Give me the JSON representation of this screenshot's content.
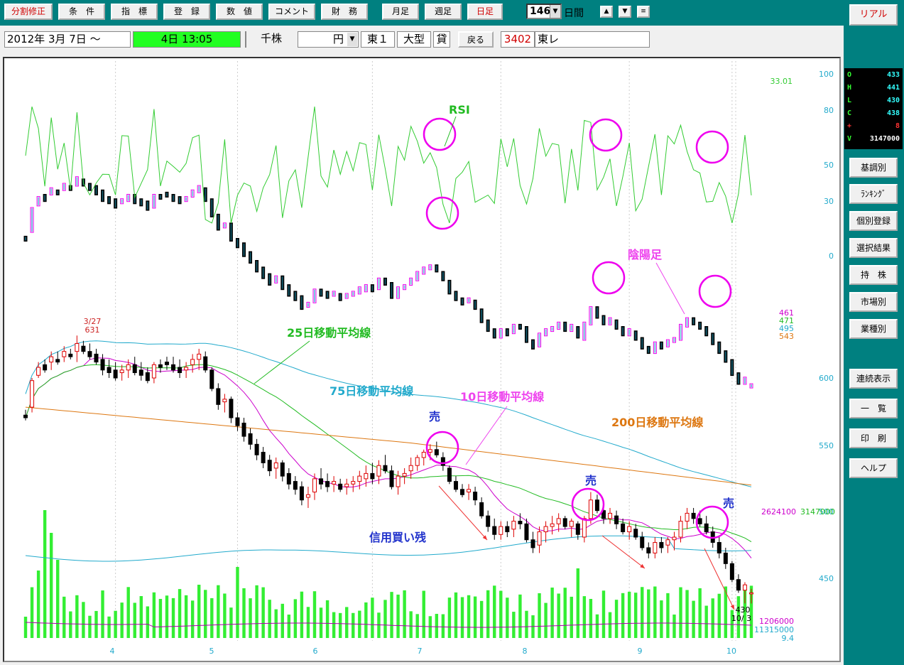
{
  "toolbar": {
    "buttons": [
      "分割修正",
      "条　件",
      "指　標",
      "登　録",
      "数　値",
      "コメント",
      "財　務",
      "月足",
      "週足",
      "日足"
    ],
    "period_value": "146",
    "period_unit": "日間"
  },
  "sidebar": {
    "realtime_button": "リアル",
    "buttons": [
      "基調別",
      "ﾗﾝｷﾝｸﾞ",
      "個別登録",
      "選択結果",
      "持　株",
      "市場別",
      "業種別",
      "連続表示",
      "一　覧",
      "印　刷",
      "ヘルプ"
    ],
    "ohlc": [
      {
        "key": "O",
        "value": "433"
      },
      {
        "key": "H",
        "value": "441"
      },
      {
        "key": "L",
        "value": "430"
      },
      {
        "key": "C",
        "value": "438"
      },
      {
        "key": "+",
        "value": "8"
      },
      {
        "key": "V",
        "value": "3147000"
      }
    ]
  },
  "infobar": {
    "start_date": "2012年 3月 7日 ～",
    "current_time": "4日 13:05",
    "volume_unit": "千株",
    "price_unit": "円",
    "market": "東１",
    "size": "大型",
    "lending": "貸",
    "back_button": "戻る",
    "code": "3402",
    "name": "東レ"
  },
  "colors": {
    "toolbar_bg": "#008080",
    "rsi": "#33cc33",
    "ma10": "#cc00cc",
    "ma25": "#22bb22",
    "ma75": "#22aacc",
    "ma200": "#dd7711",
    "volume": "#33ee33",
    "annotation_circle": "#ee00ee",
    "up_candle": "#dd0000",
    "down_candle": "#000000"
  },
  "chart_data": {
    "type": "candlestick",
    "x_ticks": [
      "4",
      "5",
      "6",
      "7",
      "8",
      "9",
      "10"
    ],
    "price_axis": {
      "ticks": [
        600,
        550,
        500,
        450
      ],
      "ylim": [
        440,
        640
      ]
    },
    "rsi_axis": {
      "ticks": [
        100,
        80,
        50,
        30,
        0
      ],
      "ylim": [
        0,
        100
      ],
      "current": "33.01"
    },
    "ma_values": [
      {
        "name": "10",
        "value": "461"
      },
      {
        "name": "25",
        "value": "471"
      },
      {
        "name": "75",
        "value": "495"
      },
      {
        "name": "200",
        "value": "543"
      }
    ],
    "margin_balance": "2624100",
    "latest_volume": "3147000",
    "volume_labels": [
      "1206000",
      "11315000"
    ],
    "bottom_value": "9.4",
    "peak_label": {
      "date": "3/27",
      "price": "631"
    },
    "last_label": {
      "date": "10/ 3",
      "price": "430"
    },
    "annotations": {
      "rsi": "RSI",
      "candles": "陰陽足",
      "ma25": "25日移動平均線",
      "ma75": "75日移動平均線",
      "ma10": "10日移動平均線",
      "ma200": "200日移動平均線",
      "margin": "信用買い残",
      "sell": "売"
    },
    "candles_daily_close_approx": [
      [
        572,
        568,
        576,
        570
      ],
      [
        578,
        574,
        600,
        598
      ],
      [
        602,
        600,
        612,
        608
      ],
      [
        610,
        604,
        614,
        606
      ],
      [
        612,
        606,
        620,
        616
      ],
      [
        614,
        610,
        620,
        612
      ],
      [
        616,
        612,
        624,
        620
      ],
      [
        618,
        614,
        622,
        616
      ],
      [
        620,
        612,
        632,
        626
      ],
      [
        624,
        618,
        628,
        620
      ],
      [
        620,
        614,
        626,
        616
      ],
      [
        618,
        610,
        622,
        612
      ],
      [
        614,
        602,
        618,
        606
      ],
      [
        608,
        600,
        614,
        604
      ],
      [
        606,
        598,
        612,
        600
      ],
      [
        604,
        598,
        610,
        606
      ],
      [
        606,
        600,
        614,
        610
      ],
      [
        610,
        602,
        616,
        604
      ],
      [
        606,
        598,
        612,
        602
      ],
      [
        604,
        596,
        608,
        598
      ],
      [
        600,
        596,
        612,
        610
      ],
      [
        610,
        604,
        614,
        608
      ],
      [
        612,
        606,
        616,
        610
      ],
      [
        610,
        604,
        616,
        606
      ],
      [
        608,
        600,
        614,
        604
      ],
      [
        606,
        600,
        612,
        608
      ],
      [
        610,
        604,
        618,
        614
      ],
      [
        614,
        606,
        622,
        618
      ],
      [
        616,
        604,
        620,
        606
      ],
      [
        606,
        590,
        608,
        592
      ],
      [
        592,
        576,
        596,
        580
      ],
      [
        582,
        574,
        588,
        584
      ],
      [
        584,
        566,
        586,
        570
      ],
      [
        570,
        560,
        574,
        564
      ],
      [
        566,
        552,
        570,
        556
      ],
      [
        558,
        546,
        562,
        550
      ],
      [
        550,
        538,
        554,
        542
      ],
      [
        544,
        532,
        548,
        536
      ],
      [
        538,
        526,
        542,
        530
      ],
      [
        532,
        524,
        540,
        536
      ],
      [
        536,
        522,
        538,
        526
      ],
      [
        528,
        516,
        532,
        520
      ],
      [
        522,
        512,
        526,
        516
      ],
      [
        518,
        504,
        522,
        508
      ],
      [
        510,
        502,
        518,
        512
      ],
      [
        514,
        508,
        528,
        524
      ],
      [
        524,
        516,
        532,
        520
      ],
      [
        522,
        514,
        528,
        518
      ],
      [
        520,
        514,
        526,
        522
      ],
      [
        520,
        514,
        524,
        516
      ],
      [
        518,
        512,
        524,
        520
      ],
      [
        520,
        514,
        526,
        522
      ],
      [
        522,
        516,
        530,
        526
      ],
      [
        524,
        518,
        534,
        528
      ],
      [
        528,
        520,
        536,
        524
      ],
      [
        526,
        520,
        538,
        534
      ],
      [
        534,
        528,
        542,
        530
      ],
      [
        530,
        516,
        534,
        518
      ],
      [
        518,
        512,
        530,
        526
      ],
      [
        526,
        520,
        532,
        528
      ],
      [
        530,
        524,
        540,
        534
      ],
      [
        534,
        530,
        542,
        540
      ],
      [
        540,
        534,
        546,
        544
      ],
      [
        544,
        538,
        550,
        546
      ],
      [
        546,
        540,
        552,
        542
      ],
      [
        540,
        530,
        544,
        534
      ],
      [
        532,
        520,
        534,
        522
      ],
      [
        522,
        514,
        526,
        516
      ],
      [
        516,
        510,
        520,
        512
      ],
      [
        514,
        508,
        520,
        516
      ],
      [
        514,
        504,
        518,
        508
      ],
      [
        506,
        494,
        510,
        496
      ],
      [
        496,
        484,
        500,
        488
      ],
      [
        488,
        478,
        494,
        482
      ],
      [
        482,
        478,
        492,
        488
      ],
      [
        488,
        480,
        492,
        484
      ],
      [
        486,
        480,
        496,
        492
      ],
      [
        492,
        486,
        498,
        490
      ],
      [
        490,
        476,
        494,
        478
      ],
      [
        478,
        468,
        484,
        472
      ],
      [
        474,
        468,
        488,
        484
      ],
      [
        484,
        476,
        492,
        488
      ],
      [
        488,
        482,
        496,
        490
      ],
      [
        490,
        484,
        498,
        494
      ],
      [
        494,
        486,
        496,
        488
      ],
      [
        488,
        480,
        494,
        492
      ],
      [
        490,
        478,
        492,
        482
      ],
      [
        480,
        476,
        496,
        494
      ],
      [
        494,
        490,
        514,
        508
      ],
      [
        508,
        498,
        512,
        500
      ],
      [
        500,
        490,
        504,
        494
      ],
      [
        494,
        490,
        502,
        498
      ],
      [
        496,
        486,
        500,
        490
      ],
      [
        490,
        482,
        494,
        484
      ],
      [
        484,
        478,
        492,
        488
      ],
      [
        486,
        478,
        490,
        480
      ],
      [
        480,
        470,
        484,
        472
      ],
      [
        472,
        464,
        476,
        468
      ],
      [
        468,
        464,
        480,
        476
      ],
      [
        476,
        468,
        480,
        472
      ],
      [
        474,
        468,
        480,
        478
      ],
      [
        478,
        470,
        484,
        480
      ],
      [
        480,
        476,
        496,
        492
      ],
      [
        492,
        486,
        502,
        498
      ],
      [
        498,
        490,
        502,
        494
      ],
      [
        494,
        488,
        500,
        490
      ],
      [
        490,
        482,
        496,
        484
      ],
      [
        484,
        472,
        488,
        476
      ],
      [
        476,
        464,
        480,
        468
      ],
      [
        468,
        456,
        472,
        460
      ],
      [
        460,
        446,
        462,
        448
      ],
      [
        448,
        438,
        452,
        440
      ],
      [
        440,
        430,
        446,
        444
      ],
      [
        438,
        430,
        441,
        438
      ]
    ]
  }
}
